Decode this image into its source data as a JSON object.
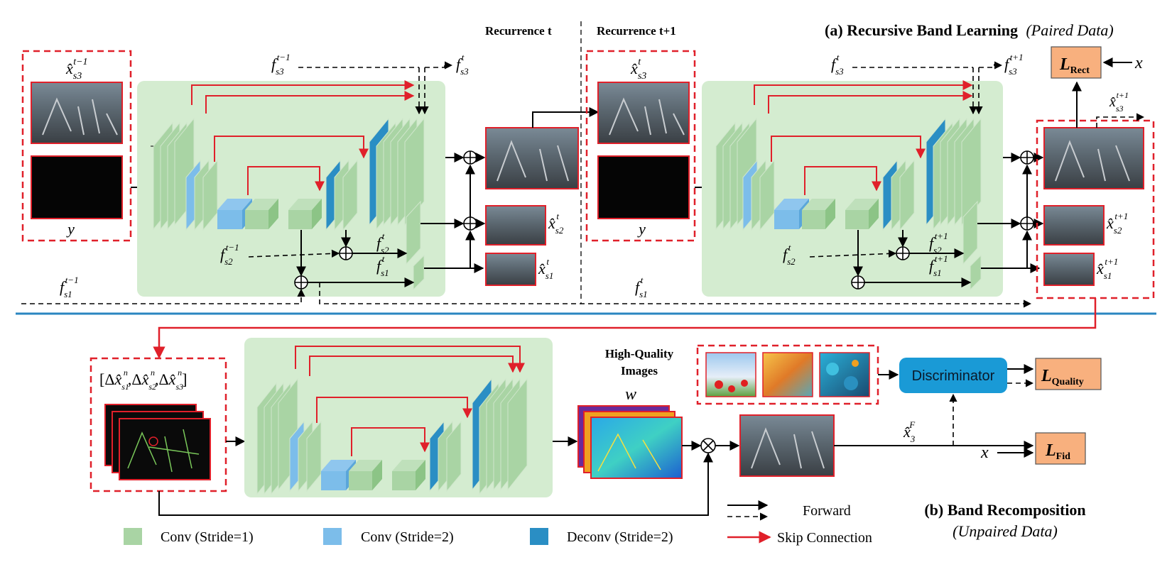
{
  "headers": {
    "recurrence_t": "Recurrence t",
    "recurrence_t1": "Recurrence t+1",
    "panel_a_title": "(a) Recursive Band Learning",
    "panel_a_sub": "(Paired Data)",
    "panel_b_title": "(b) Band Recomposition",
    "panel_b_sub": "(Unpaired Data)"
  },
  "math": {
    "x_hat": "x̂",
    "y": "y",
    "f": "f",
    "x": "x",
    "s1": "s1",
    "s2": "s2",
    "s3": "s3",
    "t": "t",
    "t_minus_1": "t−1",
    "t_plus_1": "t+1",
    "F": "F",
    "n": "n",
    "w": "w",
    "delta": "Δ",
    "bracket_open": "[",
    "bracket_close": "]",
    "comma": ",",
    "sub3": "3"
  },
  "losses": {
    "rect_main": "L",
    "rect_sub": "Rect",
    "quality_main": "L",
    "quality_sub": "Quality",
    "fid_main": "L",
    "fid_sub": "Fid"
  },
  "hq_images_label_1": "High-Quality",
  "hq_images_label_2": "Images",
  "discriminator_label": "Discriminator",
  "legend": {
    "conv1": "Conv (Stride=1)",
    "conv2": "Conv (Stride=2)",
    "deconv": "Deconv (Stride=2)",
    "forward": "Forward",
    "skip": "Skip Connection"
  },
  "colors": {
    "conv_stride1": "#a9d4a4",
    "conv_stride2": "#7cbdea",
    "deconv_stride2": "#2a8ec4",
    "net_bg": "#d4ecd0",
    "dashed_red": "#e0202a",
    "skip_red": "#e0202a",
    "loss_box": "#f8b07e",
    "discriminator": "#1a9ad6",
    "divider_blue": "#2a86c0"
  }
}
